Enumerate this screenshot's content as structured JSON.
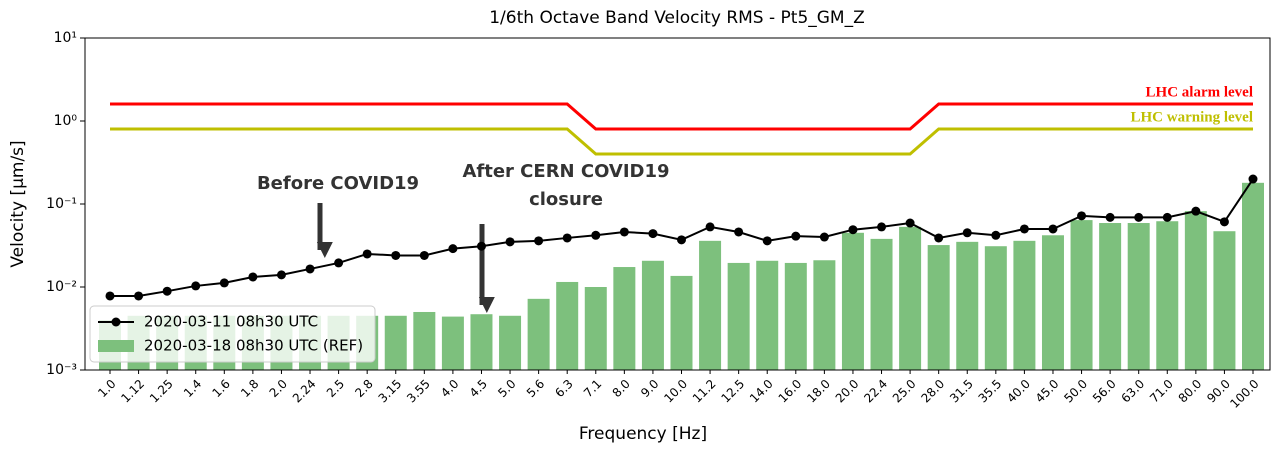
{
  "chart_data": {
    "type": "combo",
    "title": "1/6th Octave Band Velocity RMS - Pt5_GM_Z",
    "x_label": "Frequency [Hz]",
    "y_label": "Velocity [μm/s]",
    "y_scale": "log",
    "ylim": [
      0.001,
      10
    ],
    "yticks": [
      {
        "value": 0.001,
        "label": "10⁻³"
      },
      {
        "value": 0.01,
        "label": "10⁻²"
      },
      {
        "value": 0.1,
        "label": "10⁻¹"
      },
      {
        "value": 1,
        "label": "10⁰"
      },
      {
        "value": 10,
        "label": "10¹"
      }
    ],
    "categories": [
      "1.0",
      "1.12",
      "1.25",
      "1.4",
      "1.6",
      "1.8",
      "2.0",
      "2.24",
      "2.5",
      "2.8",
      "3.15",
      "3.55",
      "4.0",
      "4.5",
      "5.0",
      "5.6",
      "6.3",
      "7.1",
      "8.0",
      "9.0",
      "10.0",
      "11.2",
      "12.5",
      "14.0",
      "16.0",
      "18.0",
      "20.0",
      "22.4",
      "25.0",
      "28.0",
      "31.5",
      "35.5",
      "40.0",
      "45.0",
      "50.0",
      "56.0",
      "63.0",
      "71.0",
      "80.0",
      "90.0",
      "100.0"
    ],
    "legend_position": "lower left",
    "series": [
      {
        "name": "2020-03-18 08h30 UTC (REF)",
        "type": "bar",
        "color": "#7dc07d",
        "values": [
          0.004,
          0.0045,
          0.0045,
          0.0045,
          0.0045,
          0.0045,
          0.0045,
          0.0045,
          0.0045,
          0.0045,
          0.0045,
          0.005,
          0.0044,
          0.0047,
          0.0045,
          0.0072,
          0.0115,
          0.01,
          0.0174,
          0.0207,
          0.0136,
          0.036,
          0.0195,
          0.0207,
          0.0195,
          0.021,
          0.045,
          0.038,
          0.053,
          0.032,
          0.035,
          0.031,
          0.036,
          0.042,
          0.064,
          0.059,
          0.059,
          0.062,
          0.082,
          0.047,
          0.18
        ]
      },
      {
        "name": "2020-03-11 08h30 UTC",
        "type": "line",
        "marker": true,
        "color": "#000000",
        "values": [
          0.0078,
          0.0078,
          0.0089,
          0.0103,
          0.0112,
          0.0132,
          0.014,
          0.0165,
          0.0195,
          0.025,
          0.024,
          0.024,
          0.029,
          0.031,
          0.035,
          0.036,
          0.039,
          0.042,
          0.046,
          0.044,
          0.037,
          0.053,
          0.046,
          0.036,
          0.041,
          0.04,
          0.049,
          0.053,
          0.059,
          0.039,
          0.045,
          0.042,
          0.05,
          0.05,
          0.072,
          0.069,
          0.069,
          0.069,
          0.082,
          0.061,
          0.2
        ]
      },
      {
        "label": "LHC alarm level",
        "type": "line",
        "marker": false,
        "color": "#ff0000",
        "values": [
          1.6,
          1.6,
          1.6,
          1.6,
          1.6,
          1.6,
          1.6,
          1.6,
          1.6,
          1.6,
          1.6,
          1.6,
          1.6,
          1.6,
          1.6,
          1.6,
          1.6,
          0.8,
          0.8,
          0.8,
          0.8,
          0.8,
          0.8,
          0.8,
          0.8,
          0.8,
          0.8,
          0.8,
          0.8,
          1.6,
          1.6,
          1.6,
          1.6,
          1.6,
          1.6,
          1.6,
          1.6,
          1.6,
          1.6,
          1.6,
          1.6
        ]
      },
      {
        "label": "LHC warning level",
        "type": "line",
        "marker": false,
        "color": "#bfbf00",
        "values": [
          0.8,
          0.8,
          0.8,
          0.8,
          0.8,
          0.8,
          0.8,
          0.8,
          0.8,
          0.8,
          0.8,
          0.8,
          0.8,
          0.8,
          0.8,
          0.8,
          0.8,
          0.4,
          0.4,
          0.4,
          0.4,
          0.4,
          0.4,
          0.4,
          0.4,
          0.4,
          0.4,
          0.4,
          0.4,
          0.8,
          0.8,
          0.8,
          0.8,
          0.8,
          0.8,
          0.8,
          0.8,
          0.8,
          0.8,
          0.8,
          0.8
        ]
      }
    ],
    "annotations": [
      {
        "lines": [
          "Before COVID19"
        ]
      },
      {
        "lines": [
          "After CERN COVID19",
          "closure"
        ]
      }
    ]
  }
}
